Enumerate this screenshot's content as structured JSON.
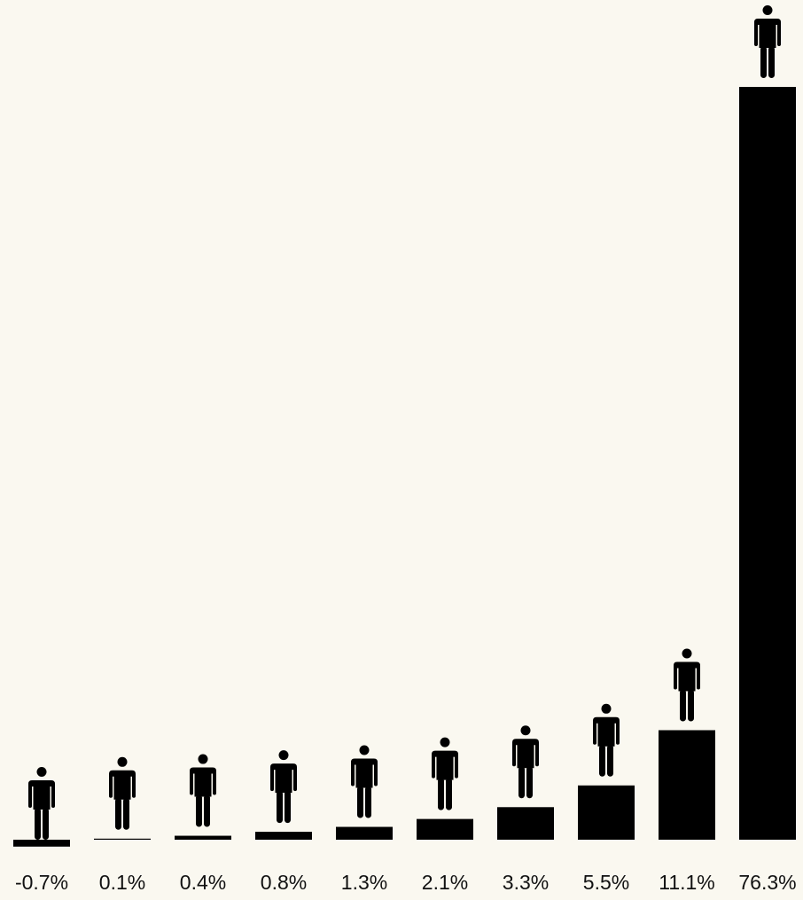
{
  "colors": {
    "background": "#faf8f0",
    "bar": "#000000",
    "label": "#111111",
    "title": "#888888"
  },
  "chart_data": {
    "type": "bar",
    "title": "",
    "xlabel": "",
    "ylabel": "",
    "grid": false,
    "marker_icon": "person-icon",
    "categories": [
      "-0.7%",
      "0.1%",
      "0.4%",
      "0.8%",
      "1.3%",
      "2.1%",
      "3.3%",
      "5.5%",
      "11.1%",
      "76.3%"
    ],
    "values": [
      -0.7,
      0.1,
      0.4,
      0.8,
      1.3,
      2.1,
      3.3,
      5.5,
      11.1,
      76.3
    ],
    "ylim": [
      -0.7,
      76.3
    ]
  }
}
